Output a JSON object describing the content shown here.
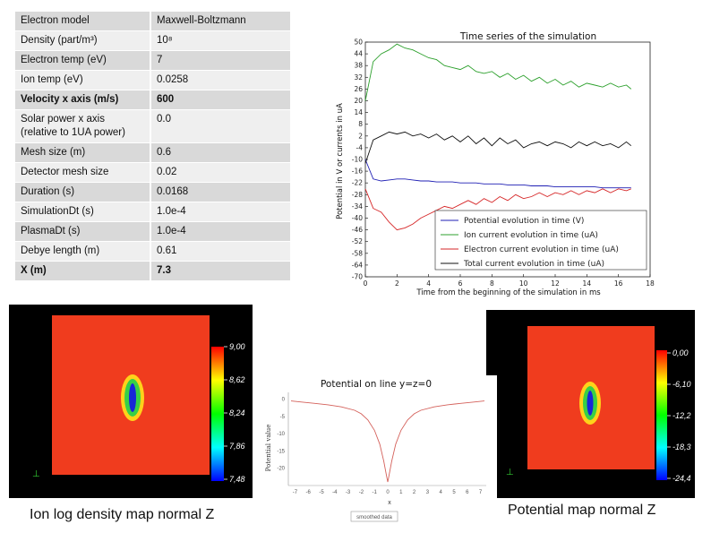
{
  "parameters": {
    "rows": [
      {
        "label": "Electron model",
        "value": "Maxwell-Boltzmann",
        "bold": false
      },
      {
        "label": "Density (part/m³)",
        "value": "10⁸",
        "bold": false
      },
      {
        "label": "Electron temp (eV)",
        "value": "7",
        "bold": false
      },
      {
        "label": "Ion temp (eV)",
        "value": "0.0258",
        "bold": false
      },
      {
        "label": "Velocity x axis (m/s)",
        "value": "600",
        "bold": true
      },
      {
        "label": "Solar power x axis (relative to 1UA power)",
        "value": "0.0",
        "bold": false
      },
      {
        "label": "Mesh size (m)",
        "value": "0.6",
        "bold": false
      },
      {
        "label": "Detector mesh size",
        "value": "0.02",
        "bold": false
      },
      {
        "label": "Duration (s)",
        "value": "0.0168",
        "bold": false
      },
      {
        "label": "SimulationDt (s)",
        "value": "1.0e-4",
        "bold": false
      },
      {
        "label": "PlasmaDt (s)",
        "value": "1.0e-4",
        "bold": false
      },
      {
        "label": "Debye length (m)",
        "value": "0.61",
        "bold": false
      },
      {
        "label": "X (m)",
        "value": "7.3",
        "bold": true
      }
    ]
  },
  "colors": {
    "potential": "#1f1fb4",
    "ion": "#2ca02c",
    "electron": "#d62728",
    "total": "#111111",
    "map_bg": "#000000",
    "map_field": "#f03c1e"
  },
  "chart_data": [
    {
      "type": "line",
      "title": "Time series of the simulation",
      "xlabel": "Time from the beginning of the simulation in ms",
      "ylabel": "Potential in V or currents in uA",
      "xlim": [
        0,
        18
      ],
      "ylim": [
        -70,
        50
      ],
      "xticks": [
        "0",
        "2",
        "4",
        "6",
        "8",
        "10",
        "12",
        "14",
        "16",
        "18"
      ],
      "yticks": [
        "50",
        "44",
        "38",
        "32",
        "26",
        "20",
        "14",
        "8",
        "2",
        "-4",
        "-10",
        "-16",
        "-22",
        "-28",
        "-34",
        "-40",
        "-46",
        "-52",
        "-58",
        "-64",
        "-70"
      ],
      "x": [
        0,
        0.5,
        1,
        1.5,
        2,
        2.5,
        3,
        3.5,
        4,
        4.5,
        5,
        5.5,
        6,
        6.5,
        7,
        7.5,
        8,
        8.5,
        9,
        9.5,
        10,
        10.5,
        11,
        11.5,
        12,
        12.5,
        13,
        13.5,
        14,
        14.5,
        15,
        15.5,
        16,
        16.5,
        16.8
      ],
      "series": [
        {
          "name": "Potential evolution in time (V)",
          "color_key": "potential",
          "values": [
            -10,
            -20,
            -21,
            -20.5,
            -20,
            -20,
            -20.5,
            -21,
            -21,
            -21.5,
            -21.5,
            -21.5,
            -22,
            -22,
            -22,
            -22.5,
            -22.5,
            -22.5,
            -23,
            -23,
            -23,
            -23.5,
            -23.5,
            -23.5,
            -24,
            -24,
            -24,
            -24,
            -24,
            -24,
            -24.5,
            -24.5,
            -24.5,
            -24.5,
            -24.5
          ]
        },
        {
          "name": "Ion current evolution in time (uA)",
          "color_key": "ion",
          "values": [
            20,
            40,
            44,
            46,
            49,
            47,
            46,
            44,
            42,
            41,
            38,
            37,
            36,
            38,
            35,
            34,
            35,
            32,
            34,
            31,
            33,
            30,
            32,
            29,
            31,
            28,
            30,
            27,
            29,
            28,
            27,
            29,
            27,
            28,
            26
          ]
        },
        {
          "name": "Electron current evolution in time (uA)",
          "color_key": "electron",
          "values": [
            -25,
            -35,
            -37,
            -42,
            -46,
            -45,
            -43,
            -40,
            -38,
            -36,
            -34,
            -35,
            -33,
            -31,
            -33,
            -30,
            -32,
            -29,
            -31,
            -28,
            -30,
            -29,
            -27,
            -29,
            -27,
            -28,
            -26,
            -28,
            -26,
            -27,
            -25,
            -27,
            -25,
            -26,
            -25
          ]
        },
        {
          "name": "Total current evolution in time (uA)",
          "color_key": "total",
          "values": [
            -12,
            0,
            2,
            4,
            3,
            4,
            2,
            3,
            1,
            3,
            0,
            2,
            -1,
            2,
            -2,
            1,
            -3,
            1,
            -2,
            0,
            -4,
            -2,
            -1,
            -3,
            -1,
            -2,
            -4,
            -1,
            -3,
            -1,
            -3,
            -2,
            -4,
            -1,
            -3
          ]
        }
      ]
    },
    {
      "type": "line",
      "title": "Potential on line y=z=0",
      "xlabel": "x",
      "ylabel": "Potential value",
      "xlim": [
        -7.5,
        7.5
      ],
      "ylim": [
        -25,
        2
      ],
      "xticks": [
        "-7",
        "-6",
        "-5",
        "-4",
        "-3",
        "-2",
        "-1",
        "0",
        "1",
        "2",
        "3",
        "4",
        "5",
        "6",
        "7"
      ],
      "yticks": [
        "0",
        "-5",
        "-10",
        "-15",
        "-20"
      ],
      "legend": "smoothed data",
      "x": [
        -7.3,
        -6.5,
        -5.5,
        -4.5,
        -3.5,
        -2.5,
        -2,
        -1.5,
        -1,
        -0.6,
        -0.3,
        -0.1,
        0,
        0.1,
        0.3,
        0.6,
        1,
        1.5,
        2,
        2.5,
        3.5,
        4.5,
        5.5,
        6.5,
        7.3
      ],
      "series": [
        {
          "name": "Potential",
          "color": "#d4605a",
          "values": [
            -0.5,
            -0.8,
            -1.2,
            -1.6,
            -2.2,
            -3.2,
            -4.2,
            -6,
            -9,
            -13,
            -18,
            -22,
            -24,
            -22,
            -18,
            -13,
            -9,
            -6,
            -4.2,
            -3.2,
            -2.2,
            -1.6,
            -1.2,
            -0.8,
            -0.5
          ]
        }
      ]
    },
    {
      "type": "heatmap",
      "title": "Ion log density map normal Z",
      "colorbar_ticks": [
        "9,00",
        "8,62",
        "8,24",
        "7,86",
        "7,48"
      ]
    },
    {
      "type": "heatmap",
      "title": "Potential map normal Z",
      "colorbar_ticks": [
        "0,00",
        "-6,10",
        "-12,2",
        "-18,3",
        "-24,4"
      ]
    }
  ],
  "captions": {
    "density_map": "Ion log density map normal Z",
    "potential_map": "Potential map normal Z"
  }
}
